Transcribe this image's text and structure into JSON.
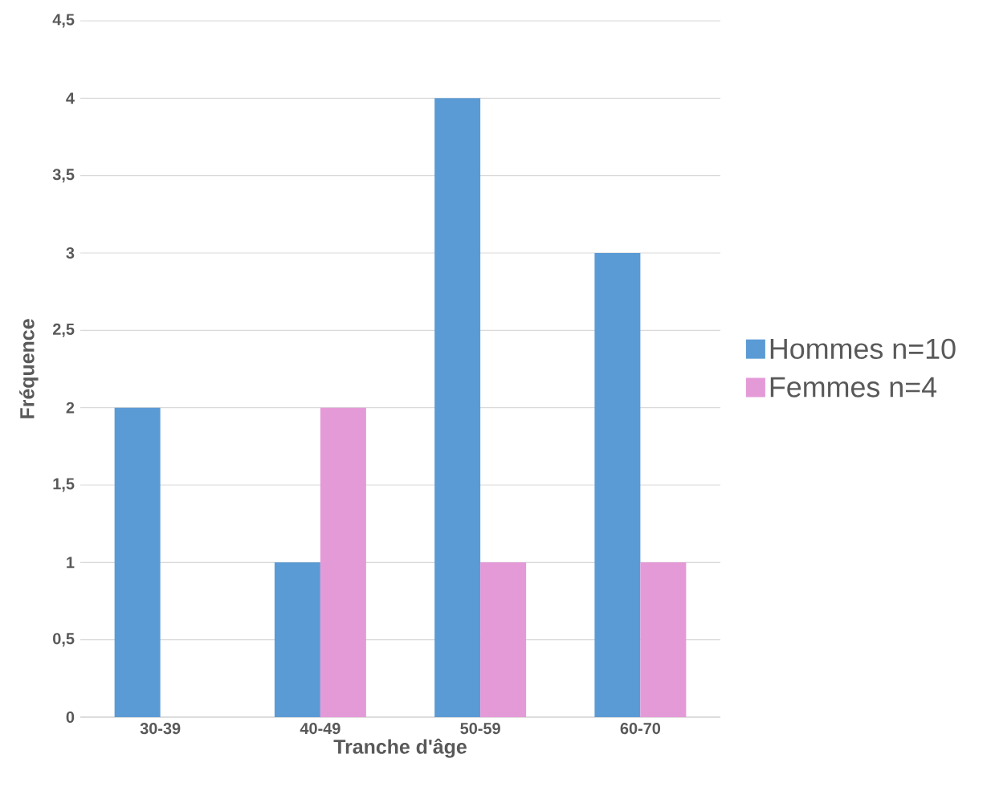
{
  "chart_data": {
    "type": "bar",
    "xlabel": "Tranche d'âge",
    "ylabel": "Fréquence",
    "categories": [
      "30-39",
      "40-49",
      "50-59",
      "60-70"
    ],
    "series": [
      {
        "name": "Hommes n=10",
        "color": "#5b9bd5",
        "values": [
          2,
          1,
          4,
          3
        ]
      },
      {
        "name": "Femmes n=4",
        "color": "#e59ad8",
        "values": [
          0,
          2,
          1,
          1
        ]
      }
    ],
    "ylim": [
      0,
      4.5
    ],
    "yticks": [
      0,
      {
        "value": 0.5,
        "label": "0,5"
      },
      1,
      {
        "value": 1.5,
        "label": "1,5"
      },
      2,
      {
        "value": 2.5,
        "label": "2,5"
      },
      3,
      {
        "value": 3.5,
        "label": "3,5"
      },
      4,
      {
        "value": 4.5,
        "label": "4,5"
      }
    ],
    "grid": "y",
    "legend": "right"
  }
}
